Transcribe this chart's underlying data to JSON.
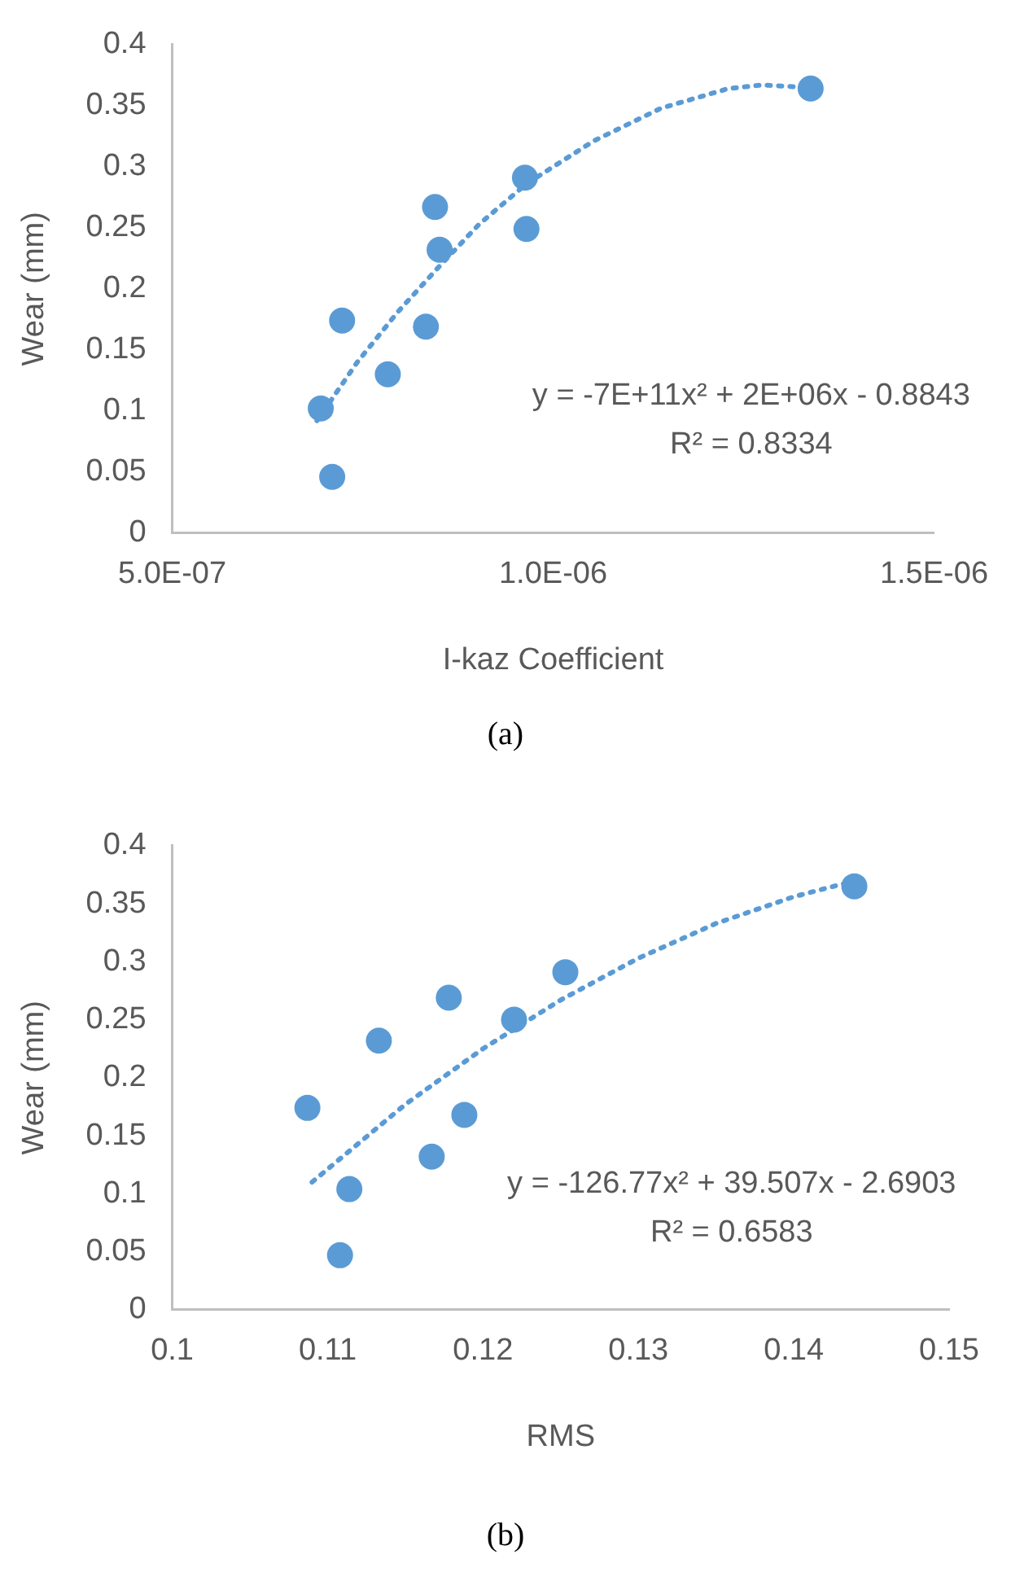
{
  "chart_data": [
    {
      "type": "scatter",
      "xlabel": "I-kaz Coefficient",
      "ylabel": "Wear (mm)",
      "xlim": [
        5e-07,
        1.5e-06
      ],
      "xticks": [
        {
          "value": 5e-07,
          "label": "5.0E-07"
        },
        {
          "value": 1e-06,
          "label": "1.0E-06"
        },
        {
          "value": 1.5e-06,
          "label": "1.5E-06"
        }
      ],
      "ylim": [
        0,
        0.4
      ],
      "yticks": [
        0,
        0.05,
        0.1,
        0.15,
        0.2,
        0.25,
        0.3,
        0.35,
        0.4
      ],
      "grid": false,
      "legend": false,
      "marker": "circle",
      "series": [
        {
          "color": "#5b9bd5",
          "x": [
            6.95e-07,
            7.1e-07,
            7.23e-07,
            7.83e-07,
            8.33e-07,
            8.45e-07,
            8.51e-07,
            9.63e-07,
            9.65e-07,
            1.338e-06
          ],
          "values": [
            0.102,
            0.046,
            0.174,
            0.13,
            0.169,
            0.267,
            0.232,
            0.291,
            0.249,
            0.364
          ]
        },
        {
          "type": "line",
          "line_style": "dotted",
          "marker": "none",
          "color": "#5b9bd5",
          "x": [
            6.9e-07,
            7.43e-07,
            7.96e-07,
            8.5e-07,
            9.03e-07,
            9.65e-07,
            1.053e-06,
            1.142e-06,
            1.23e-06,
            1.274e-06,
            1.332e-06
          ],
          "values": [
            0.092,
            0.14,
            0.181,
            0.218,
            0.253,
            0.286,
            0.321,
            0.348,
            0.364,
            0.367,
            0.365
          ]
        }
      ],
      "annotations": [
        "y = -7E+11x² + 2E+06x - 0.8843",
        "R² = 0.8334",
        "(a)"
      ]
    },
    {
      "type": "scatter",
      "xlabel": "RMS",
      "ylabel": "Wear (mm)",
      "xlim": [
        0.1,
        0.15
      ],
      "xticks": [
        0.1,
        0.11,
        0.12,
        0.13,
        0.14,
        0.15
      ],
      "ylim": [
        0,
        0.4
      ],
      "yticks": [
        0,
        0.05,
        0.1,
        0.15,
        0.2,
        0.25,
        0.3,
        0.35,
        0.4
      ],
      "grid": false,
      "legend": false,
      "marker": "circle",
      "series": [
        {
          "color": "#5b9bd5",
          "x": [
            0.1087,
            0.1108,
            0.1114,
            0.1133,
            0.1167,
            0.1178,
            0.1188,
            0.122,
            0.1253,
            0.1439
          ],
          "values": [
            0.174,
            0.047,
            0.104,
            0.232,
            0.132,
            0.269,
            0.168,
            0.25,
            0.291,
            0.365
          ]
        },
        {
          "type": "line",
          "line_style": "dotted",
          "marker": "none",
          "color": "#5b9bd5",
          "x": [
            0.109,
            0.115,
            0.12,
            0.125,
            0.13,
            0.135,
            0.14,
            0.144
          ],
          "values": [
            0.11,
            0.177,
            0.225,
            0.267,
            0.303,
            0.333,
            0.356,
            0.37
          ]
        }
      ],
      "annotations": [
        "y = -126.77x² + 39.507x - 2.6903",
        "R² = 0.6583",
        "(b)"
      ]
    }
  ]
}
